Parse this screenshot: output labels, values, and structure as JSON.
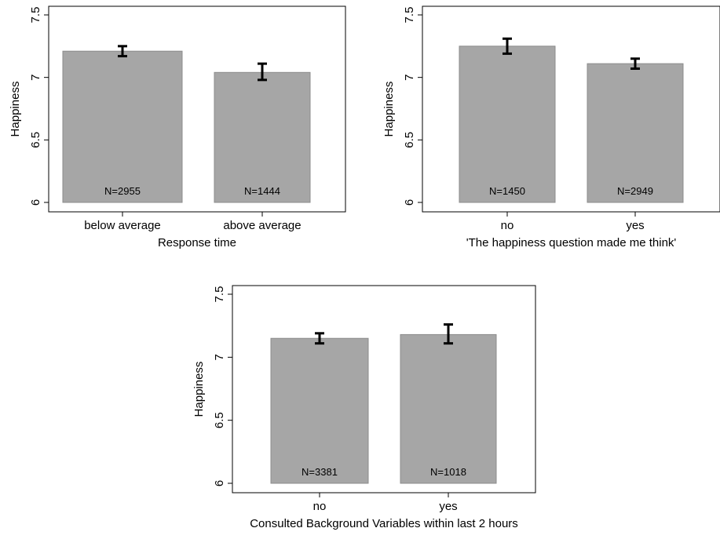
{
  "chart_data": [
    {
      "type": "bar",
      "ylabel": "Happiness",
      "xlabel": "Response time",
      "ylim": [
        6,
        7.5
      ],
      "yticks": [
        "6",
        "6.5",
        "7",
        "7.5"
      ],
      "categories": [
        "below average",
        "above average"
      ],
      "values": [
        7.21,
        7.04
      ],
      "error_low": [
        7.17,
        6.98
      ],
      "error_high": [
        7.25,
        7.11
      ],
      "n_labels": [
        "N=2955",
        "N=1444"
      ],
      "bar_color": "#a6a6a6",
      "grid": false
    },
    {
      "type": "bar",
      "ylabel": "Happiness",
      "xlabel": "'The happiness question made me think'",
      "ylim": [
        6,
        7.5
      ],
      "yticks": [
        "6",
        "6.5",
        "7",
        "7.5"
      ],
      "categories": [
        "no",
        "yes"
      ],
      "values": [
        7.25,
        7.11
      ],
      "error_low": [
        7.19,
        7.07
      ],
      "error_high": [
        7.31,
        7.15
      ],
      "n_labels": [
        "N=1450",
        "N=2949"
      ],
      "bar_color": "#a6a6a6",
      "grid": false
    },
    {
      "type": "bar",
      "ylabel": "Happiness",
      "xlabel": "Consulted Background Variables within last 2 hours",
      "ylim": [
        6,
        7.5
      ],
      "yticks": [
        "6",
        "6.5",
        "7",
        "7.5"
      ],
      "categories": [
        "no",
        "yes"
      ],
      "values": [
        7.15,
        7.18
      ],
      "error_low": [
        7.11,
        7.11
      ],
      "error_high": [
        7.19,
        7.26
      ],
      "n_labels": [
        "N=3381",
        "N=1018"
      ],
      "bar_color": "#a6a6a6",
      "grid": false
    }
  ]
}
